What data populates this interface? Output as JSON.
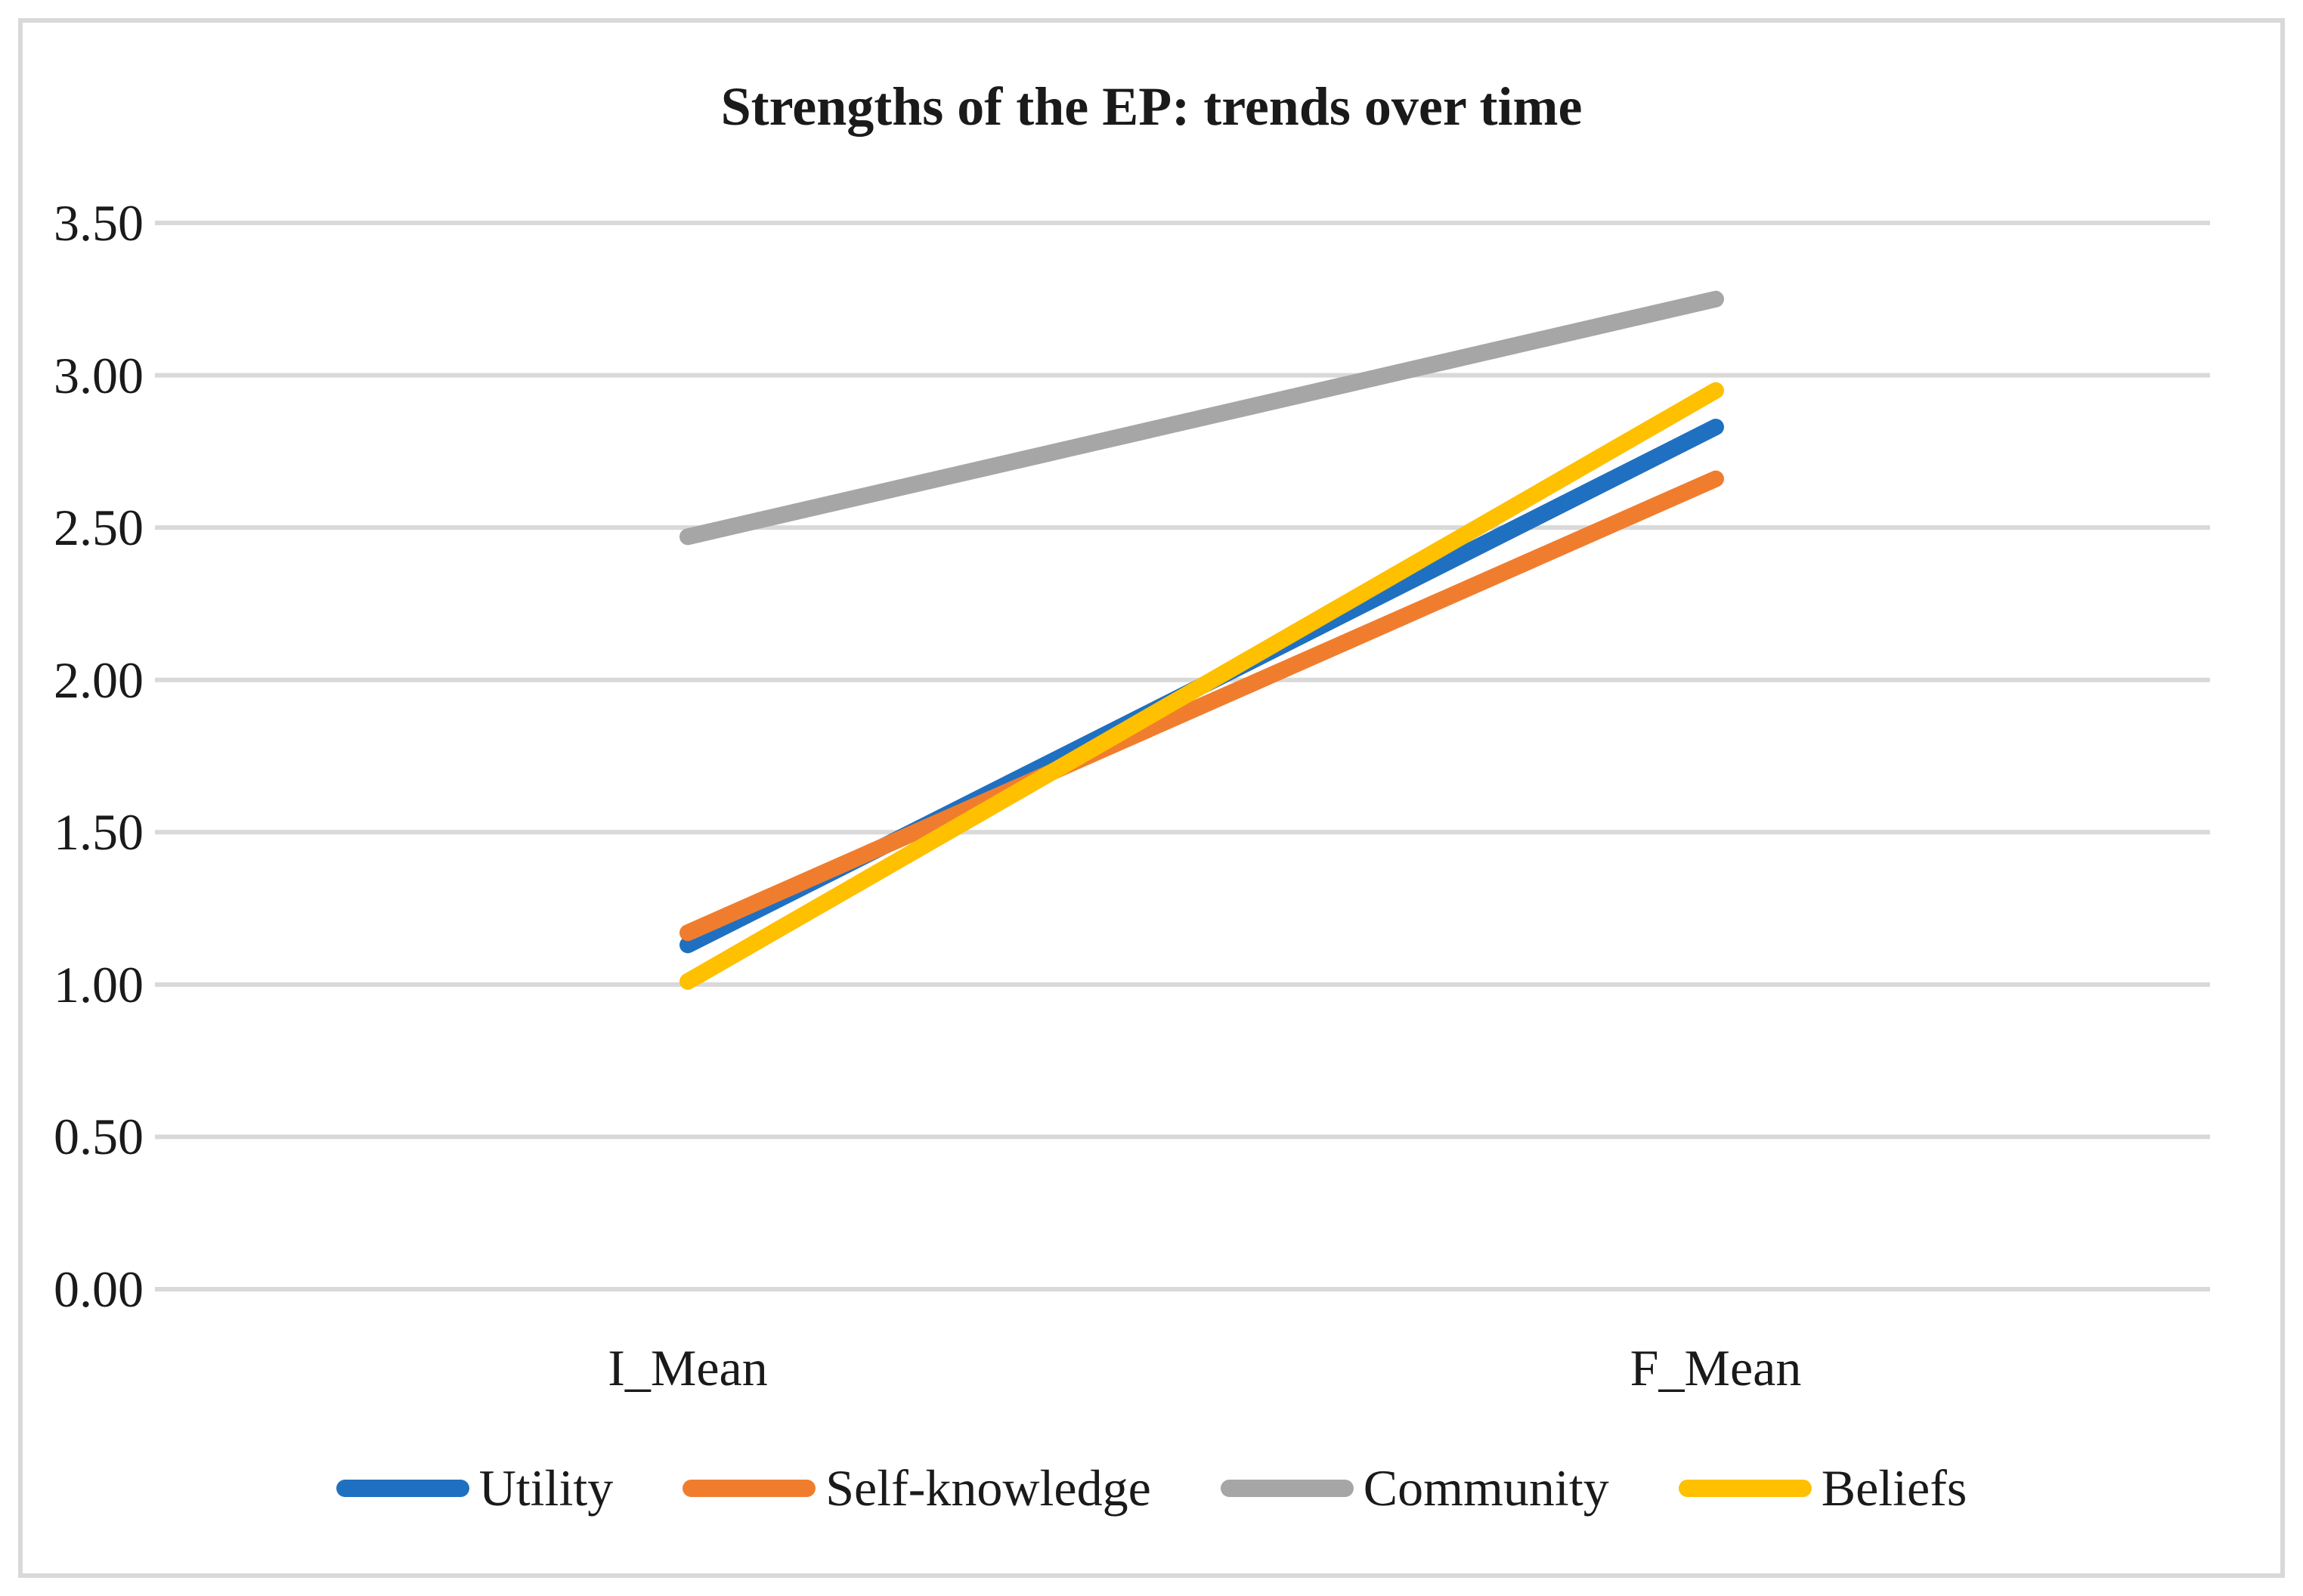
{
  "figure": {
    "border_color": "#d9d9d9",
    "background": "#ffffff",
    "text_color": "#1a1a1a"
  },
  "chart_data": {
    "type": "line",
    "title": "Strengths of the EP: trends over time",
    "xlabel": "",
    "ylabel": "",
    "categories": [
      "I_Mean",
      "F_Mean"
    ],
    "series": [
      {
        "name": "Utility",
        "color": "#1f70c1",
        "values": [
          1.13,
          2.83
        ]
      },
      {
        "name": "Self-knowledge",
        "color": "#f07d2e",
        "values": [
          1.17,
          2.66
        ]
      },
      {
        "name": "Community",
        "color": "#a6a6a6",
        "values": [
          2.47,
          3.25
        ]
      },
      {
        "name": "Beliefs",
        "color": "#ffc000",
        "values": [
          1.01,
          2.95
        ]
      }
    ],
    "ylim": [
      0,
      3.5
    ],
    "ytick_step": 0.5,
    "yticks": [
      "3.50",
      "3.00",
      "2.50",
      "2.00",
      "1.50",
      "1.00",
      "0.50",
      "0.00"
    ],
    "grid": true,
    "gridline_color": "#d9d9d9",
    "legend_position": "bottom"
  }
}
